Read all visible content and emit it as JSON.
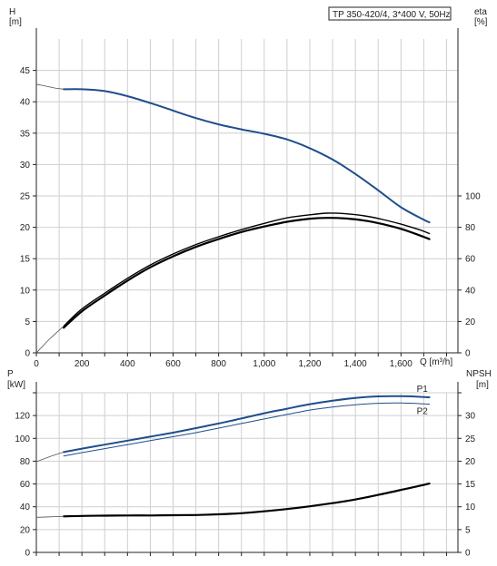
{
  "chart_data": [
    {
      "type": "line",
      "title": "TP 350-420/4, 3*400 V, 50Hz",
      "xlabel": "Q [m³/h]",
      "xlim": [
        0,
        1850
      ],
      "x_ticks": [
        "0",
        "200",
        "400",
        "600",
        "800",
        "1,000",
        "1,200",
        "1,400",
        "1,600"
      ],
      "left_axis": {
        "label_top": "H",
        "label_unit": "[m]",
        "ylim": [
          0,
          50
        ],
        "ticks": [
          "0",
          "5",
          "10",
          "15",
          "20",
          "25",
          "30",
          "35",
          "40",
          "45"
        ]
      },
      "right_axis": {
        "label_top": "eta",
        "label_unit": "[%]",
        "ylim": [
          0,
          200
        ],
        "ticks": [
          "0",
          "20",
          "40",
          "60",
          "80",
          "100"
        ]
      },
      "series": [
        {
          "axis": "left",
          "color": "#1f4e8c",
          "width": 2,
          "x": [
            120,
            200,
            300,
            400,
            500,
            600,
            700,
            800,
            900,
            1000,
            1100,
            1200,
            1300,
            1400,
            1500,
            1600,
            1700,
            1725
          ],
          "y": [
            42.0,
            42.0,
            41.7,
            40.9,
            39.8,
            38.6,
            37.4,
            36.4,
            35.6,
            34.9,
            34.0,
            32.6,
            30.8,
            28.5,
            25.9,
            23.2,
            21.2,
            20.8
          ]
        },
        {
          "axis": "left",
          "color": "#555555",
          "width": 0.8,
          "x": [
            0,
            40,
            80,
            120
          ],
          "y": [
            42.8,
            42.5,
            42.2,
            42.0
          ]
        },
        {
          "axis": "right",
          "color": "#000000",
          "width": 1.4,
          "x": [
            120,
            200,
            300,
            400,
            500,
            600,
            700,
            800,
            900,
            1000,
            1100,
            1200,
            1280,
            1360,
            1440,
            1520,
            1600,
            1680,
            1725
          ],
          "y": [
            17.0,
            28.0,
            38.0,
            47.5,
            56.0,
            63.0,
            69.0,
            74.0,
            78.5,
            82.5,
            86.0,
            88.0,
            89.0,
            88.6,
            87.3,
            85.0,
            82.0,
            78.5,
            76.0
          ]
        },
        {
          "axis": "right",
          "color": "#000000",
          "width": 2.2,
          "x": [
            120,
            200,
            300,
            400,
            500,
            600,
            700,
            800,
            900,
            1000,
            1100,
            1200,
            1280,
            1360,
            1440,
            1520,
            1600,
            1680,
            1725
          ],
          "y": [
            16.0,
            26.5,
            36.5,
            46.0,
            54.5,
            61.5,
            67.5,
            72.5,
            77.0,
            80.5,
            83.5,
            85.5,
            86.0,
            85.6,
            84.3,
            82.0,
            79.0,
            75.0,
            72.5
          ]
        },
        {
          "axis": "right",
          "color": "#555555",
          "width": 0.8,
          "x": [
            0,
            60,
            120
          ],
          "y": [
            0,
            9.0,
            17.0
          ]
        }
      ]
    },
    {
      "type": "line",
      "xlim": [
        0,
        1850
      ],
      "left_axis": {
        "label_top": "P",
        "label_unit": "[kW]",
        "ylim": [
          0,
          140
        ],
        "ticks": [
          "0",
          "20",
          "40",
          "60",
          "80",
          "100",
          "120"
        ]
      },
      "right_axis": {
        "label_top": "NPSH",
        "label_unit": "[m]",
        "ylim": [
          0,
          35
        ],
        "ticks": [
          "0",
          "5",
          "10",
          "15",
          "20",
          "25",
          "30"
        ]
      },
      "series": [
        {
          "name": "P1",
          "axis": "left",
          "color": "#1f4e8c",
          "width": 2,
          "x": [
            120,
            200,
            300,
            400,
            500,
            600,
            700,
            800,
            900,
            1000,
            1100,
            1200,
            1300,
            1400,
            1500,
            1600,
            1700,
            1725
          ],
          "y": [
            88.0,
            91.0,
            94.5,
            98.0,
            101.5,
            105.0,
            109.0,
            113.0,
            117.5,
            122.0,
            126.0,
            130.0,
            133.0,
            135.5,
            136.8,
            137.0,
            136.3,
            136.0
          ]
        },
        {
          "name": "P2",
          "axis": "left",
          "color": "#1f4e8c",
          "width": 1,
          "x": [
            120,
            200,
            300,
            400,
            500,
            600,
            700,
            800,
            900,
            1000,
            1100,
            1200,
            1300,
            1400,
            1500,
            1600,
            1700,
            1725
          ],
          "y": [
            84.5,
            87.5,
            91.0,
            94.5,
            98.0,
            101.5,
            105.0,
            109.0,
            113.0,
            117.0,
            121.0,
            124.8,
            127.5,
            129.5,
            130.8,
            131.0,
            130.3,
            130.0
          ]
        },
        {
          "axis": "left",
          "color": "#555555",
          "width": 0.8,
          "x": [
            0,
            60,
            120
          ],
          "y": [
            79.5,
            84.0,
            88.0
          ]
        },
        {
          "axis": "right",
          "color": "#000000",
          "width": 2.2,
          "x": [
            120,
            200,
            300,
            400,
            500,
            600,
            700,
            800,
            900,
            1000,
            1100,
            1200,
            1300,
            1400,
            1500,
            1600,
            1700,
            1725
          ],
          "y": [
            7.9,
            8.0,
            8.05,
            8.1,
            8.1,
            8.15,
            8.2,
            8.35,
            8.6,
            9.0,
            9.5,
            10.1,
            10.8,
            11.6,
            12.6,
            13.7,
            14.8,
            15.1
          ]
        },
        {
          "axis": "right",
          "color": "#555555",
          "width": 0.8,
          "x": [
            0,
            60,
            120
          ],
          "y": [
            7.7,
            7.8,
            7.9
          ]
        }
      ]
    }
  ]
}
